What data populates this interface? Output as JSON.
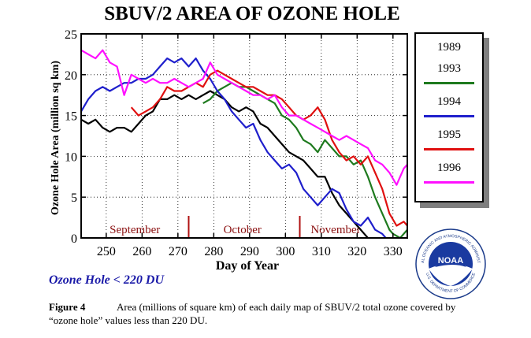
{
  "chart_data": {
    "type": "line",
    "title": "SBUV/2 AREA OF OZONE HOLE",
    "xlabel": "Day of Year",
    "ylabel": "Ozone Hole Area (million sq km)",
    "xlim": [
      243,
      334
    ],
    "ylim": [
      0,
      25
    ],
    "x_ticks": [
      250,
      260,
      270,
      280,
      290,
      300,
      310,
      320,
      330
    ],
    "y_ticks": [
      0,
      5,
      10,
      15,
      20,
      25
    ],
    "month_labels": [
      {
        "label": "September",
        "x": 258
      },
      {
        "label": "October",
        "x": 288
      },
      {
        "label": "November",
        "x": 314
      }
    ],
    "month_markers": [
      273,
      304
    ],
    "legend_position": "right",
    "series": [
      {
        "name": "1989",
        "color": "#000000",
        "points": [
          [
            243,
            14.5
          ],
          [
            245,
            14
          ],
          [
            247,
            14.5
          ],
          [
            249,
            13.5
          ],
          [
            251,
            13
          ],
          [
            253,
            13.5
          ],
          [
            255,
            13.5
          ],
          [
            257,
            13
          ],
          [
            259,
            14
          ],
          [
            261,
            15
          ],
          [
            263,
            15.5
          ],
          [
            265,
            17
          ],
          [
            267,
            17
          ],
          [
            269,
            17.5
          ],
          [
            271,
            17
          ],
          [
            273,
            17.5
          ],
          [
            275,
            17
          ],
          [
            277,
            17.5
          ],
          [
            279,
            18
          ],
          [
            281,
            17.5
          ],
          [
            283,
            17
          ],
          [
            285,
            16
          ],
          [
            287,
            15.5
          ],
          [
            289,
            16
          ],
          [
            291,
            15.5
          ],
          [
            293,
            14
          ],
          [
            295,
            13.5
          ],
          [
            297,
            12.5
          ],
          [
            299,
            11.5
          ],
          [
            301,
            10.5
          ],
          [
            303,
            10
          ],
          [
            305,
            9.5
          ],
          [
            307,
            8.5
          ],
          [
            309,
            7.5
          ],
          [
            311,
            7.5
          ],
          [
            313,
            5.5
          ],
          [
            315,
            4
          ],
          [
            317,
            3
          ],
          [
            319,
            2
          ],
          [
            321,
            1
          ],
          [
            322,
            0.5
          ],
          [
            323,
            0
          ]
        ]
      },
      {
        "name": "1993",
        "color": "#1e7a1e",
        "points": [
          [
            277,
            16.5
          ],
          [
            279,
            17
          ],
          [
            281,
            18
          ],
          [
            283,
            18.5
          ],
          [
            285,
            19
          ],
          [
            287,
            18.5
          ],
          [
            289,
            18.5
          ],
          [
            291,
            18
          ],
          [
            293,
            17.5
          ],
          [
            295,
            17
          ],
          [
            297,
            16.5
          ],
          [
            299,
            15
          ],
          [
            301,
            14.5
          ],
          [
            303,
            13.5
          ],
          [
            305,
            12
          ],
          [
            307,
            11.5
          ],
          [
            309,
            10.5
          ],
          [
            311,
            12
          ],
          [
            313,
            11
          ],
          [
            315,
            10
          ],
          [
            317,
            10
          ],
          [
            319,
            9
          ],
          [
            321,
            9.5
          ],
          [
            323,
            7.5
          ],
          [
            325,
            5
          ],
          [
            327,
            3
          ],
          [
            329,
            1
          ],
          [
            330,
            0.5
          ],
          [
            332,
            0
          ],
          [
            334,
            1
          ]
        ]
      },
      {
        "name": "1994",
        "color": "#1f1fcc",
        "points": [
          [
            243,
            15.5
          ],
          [
            245,
            17
          ],
          [
            247,
            18
          ],
          [
            249,
            18.5
          ],
          [
            251,
            18
          ],
          [
            253,
            18.5
          ],
          [
            255,
            19
          ],
          [
            257,
            19
          ],
          [
            259,
            19.5
          ],
          [
            261,
            19.5
          ],
          [
            263,
            20
          ],
          [
            265,
            21
          ],
          [
            267,
            22
          ],
          [
            269,
            21.5
          ],
          [
            271,
            22
          ],
          [
            273,
            21
          ],
          [
            275,
            22
          ],
          [
            277,
            20.5
          ],
          [
            279,
            19.5
          ],
          [
            281,
            18
          ],
          [
            283,
            17
          ],
          [
            285,
            15.5
          ],
          [
            287,
            14.5
          ],
          [
            289,
            13.5
          ],
          [
            291,
            14
          ],
          [
            293,
            12
          ],
          [
            295,
            10.5
          ],
          [
            297,
            9.5
          ],
          [
            299,
            8.5
          ],
          [
            301,
            9
          ],
          [
            303,
            8
          ],
          [
            305,
            6
          ],
          [
            307,
            5
          ],
          [
            309,
            4
          ],
          [
            311,
            5
          ],
          [
            313,
            6
          ],
          [
            315,
            5.5
          ],
          [
            317,
            3.5
          ],
          [
            319,
            2
          ],
          [
            321,
            1.5
          ],
          [
            323,
            2.5
          ],
          [
            325,
            1
          ],
          [
            327,
            0.5
          ],
          [
            328,
            0
          ]
        ]
      },
      {
        "name": "1995",
        "color": "#e01010",
        "points": [
          [
            257,
            16
          ],
          [
            259,
            15
          ],
          [
            261,
            15.5
          ],
          [
            263,
            16
          ],
          [
            265,
            17
          ],
          [
            267,
            18.5
          ],
          [
            269,
            18
          ],
          [
            271,
            18
          ],
          [
            273,
            18.5
          ],
          [
            275,
            19
          ],
          [
            277,
            18.5
          ],
          [
            279,
            20
          ],
          [
            281,
            20.5
          ],
          [
            283,
            20
          ],
          [
            285,
            19.5
          ],
          [
            287,
            19
          ],
          [
            289,
            18.5
          ],
          [
            291,
            18.5
          ],
          [
            293,
            18
          ],
          [
            295,
            17.5
          ],
          [
            297,
            17.5
          ],
          [
            299,
            17
          ],
          [
            301,
            16
          ],
          [
            303,
            15
          ],
          [
            305,
            14.5
          ],
          [
            307,
            15
          ],
          [
            309,
            16
          ],
          [
            311,
            14.5
          ],
          [
            313,
            12
          ],
          [
            315,
            10.5
          ],
          [
            317,
            9.5
          ],
          [
            319,
            10
          ],
          [
            321,
            9
          ],
          [
            323,
            10
          ],
          [
            325,
            8
          ],
          [
            327,
            6
          ],
          [
            329,
            3
          ],
          [
            331,
            1.5
          ],
          [
            333,
            2
          ],
          [
            334,
            1.5
          ]
        ]
      },
      {
        "name": "1996",
        "color": "#ff10ff",
        "points": [
          [
            243,
            23
          ],
          [
            245,
            22.5
          ],
          [
            247,
            22
          ],
          [
            249,
            23
          ],
          [
            251,
            21.5
          ],
          [
            253,
            21
          ],
          [
            255,
            17.5
          ],
          [
            257,
            20
          ],
          [
            259,
            19.5
          ],
          [
            261,
            19
          ],
          [
            263,
            19.5
          ],
          [
            265,
            19
          ],
          [
            267,
            19
          ],
          [
            269,
            19.5
          ],
          [
            271,
            19
          ],
          [
            273,
            18.5
          ],
          [
            275,
            19
          ],
          [
            277,
            19.5
          ],
          [
            279,
            21.5
          ],
          [
            281,
            20
          ],
          [
            283,
            19.5
          ],
          [
            285,
            19
          ],
          [
            287,
            18.5
          ],
          [
            289,
            18
          ],
          [
            291,
            17.5
          ],
          [
            293,
            17.5
          ],
          [
            295,
            17
          ],
          [
            297,
            17.5
          ],
          [
            299,
            16
          ],
          [
            301,
            15
          ],
          [
            303,
            15
          ],
          [
            305,
            14.5
          ],
          [
            307,
            14
          ],
          [
            309,
            13.5
          ],
          [
            311,
            13
          ],
          [
            313,
            12.5
          ],
          [
            315,
            12
          ],
          [
            317,
            12.5
          ],
          [
            319,
            12
          ],
          [
            321,
            11.5
          ],
          [
            323,
            11
          ],
          [
            325,
            9.5
          ],
          [
            327,
            9
          ],
          [
            329,
            8
          ],
          [
            331,
            6.5
          ],
          [
            333,
            8.5
          ],
          [
            334,
            9
          ]
        ]
      }
    ]
  },
  "legend_items": [
    {
      "label": "1989",
      "color": "#000000"
    },
    {
      "label": "1993",
      "color": "#1e7a1e"
    },
    {
      "label": "1994",
      "color": "#1f1fcc"
    },
    {
      "label": "1995",
      "color": "#e01010"
    },
    {
      "label": "1996",
      "color": "#ff10ff"
    }
  ],
  "note": "Ozone Hole < 220 DU",
  "caption": {
    "figure": "Figure 4",
    "line1": "Area (millions of square km) of each daily map of SBUV/2 total ozone covered by",
    "line2": "“ozone hole” values less than 220 DU."
  },
  "logo": {
    "text": "NOAA",
    "ring_top": "NATIONAL OCEANIC AND ATMOSPHERIC ADMINISTRATION",
    "ring_bottom": "U.S. DEPARTMENT OF COMMERCE"
  }
}
